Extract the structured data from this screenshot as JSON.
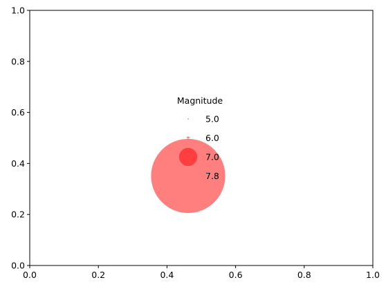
{
  "chart_data": {
    "type": "scatter",
    "title": "",
    "xlabel": "",
    "ylabel": "",
    "xlim": [
      0,
      1
    ],
    "ylim": [
      0,
      1
    ],
    "grid": false,
    "x_ticks": [
      "0.0",
      "0.2",
      "0.4",
      "0.6",
      "0.8",
      "1.0"
    ],
    "y_ticks": [
      "0.0",
      "0.2",
      "0.4",
      "0.6",
      "0.8",
      "1.0"
    ],
    "legend": {
      "title": "Magnitude",
      "placement": "center",
      "marker_color": "#ff0000",
      "entries": [
        {
          "label": "5.0",
          "value": 5.0
        },
        {
          "label": "6.0",
          "value": 6.0
        },
        {
          "label": "7.0",
          "value": 7.0
        },
        {
          "label": "7.8",
          "value": 7.8
        }
      ]
    }
  }
}
